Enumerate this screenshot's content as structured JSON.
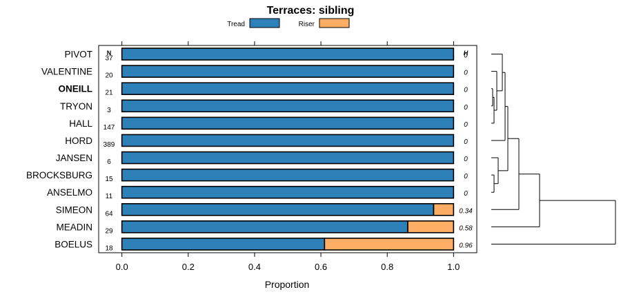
{
  "chart_data": {
    "type": "bar",
    "title": "Terraces: sibling",
    "xlabel": "Proportion",
    "ylabel": "",
    "xlim": [
      -0.07,
      1.07
    ],
    "xticks": [
      0.0,
      0.2,
      0.4,
      0.6,
      0.8,
      1.0
    ],
    "xtick_labels": [
      "0.0",
      "0.2",
      "0.4",
      "0.6",
      "0.8",
      "1.0"
    ],
    "stacked": true,
    "horizontal": true,
    "legend_position": "top",
    "n_header": "N",
    "h_header": "H",
    "highlight_category": "ONEILL",
    "categories": [
      "PIVOT",
      "VALENTINE",
      "ONEILL",
      "TRYON",
      "HALL",
      "HORD",
      "JANSEN",
      "BROCKSBURG",
      "ANSELMO",
      "SIMEON",
      "MEADIN",
      "BOELUS"
    ],
    "n": [
      "37",
      "20",
      "21",
      "3",
      "147",
      "389",
      "6",
      "15",
      "11",
      "64",
      "29",
      "18"
    ],
    "h": [
      "0",
      "0",
      "0",
      "0",
      "0",
      "0",
      "0",
      "0",
      "0",
      "0.34",
      "0.58",
      "0.96"
    ],
    "series": [
      {
        "name": "Tread",
        "color": "#2e80b8",
        "values": [
          1,
          1,
          1,
          1,
          1,
          1,
          1,
          1,
          1,
          0.94,
          0.862,
          0.611
        ]
      },
      {
        "name": "Riser",
        "color": "#fdae64",
        "values": [
          0,
          0,
          0,
          0,
          0,
          0,
          0,
          0,
          0,
          0.06,
          0.138,
          0.389
        ]
      }
    ],
    "dendrogram": {
      "leaves": [
        "PIVOT",
        "VALENTINE",
        "ONEILL",
        "TRYON",
        "HALL",
        "HORD",
        "JANSEN",
        "BROCKSBURG",
        "ANSELMO",
        "SIMEON",
        "MEADIN",
        "BOELUS"
      ],
      "merges": [
        {
          "a": "ONEILL",
          "b": "TRYON",
          "height": 0.01
        },
        {
          "a": "c0",
          "b": "HALL",
          "height": 0.02
        },
        {
          "a": "VALENTINE",
          "b": "c1",
          "height": 0.04
        },
        {
          "a": "BROCKSBURG",
          "b": "ANSELMO",
          "height": 0.02
        },
        {
          "a": "c3",
          "b": "JANSEN",
          "height": 0.05
        },
        {
          "a": "PIVOT",
          "b": "c2",
          "height": 0.08
        },
        {
          "a": "c5",
          "b": "HORD",
          "height": 0.1
        },
        {
          "a": "c6",
          "b": "c4",
          "height": 0.12
        },
        {
          "a": "c7",
          "b": "SIMEON",
          "height": 0.2
        },
        {
          "a": "c8",
          "b": "MEADIN",
          "height": 0.35
        },
        {
          "a": "c9",
          "b": "BOELUS",
          "height": 0.9
        }
      ]
    }
  }
}
